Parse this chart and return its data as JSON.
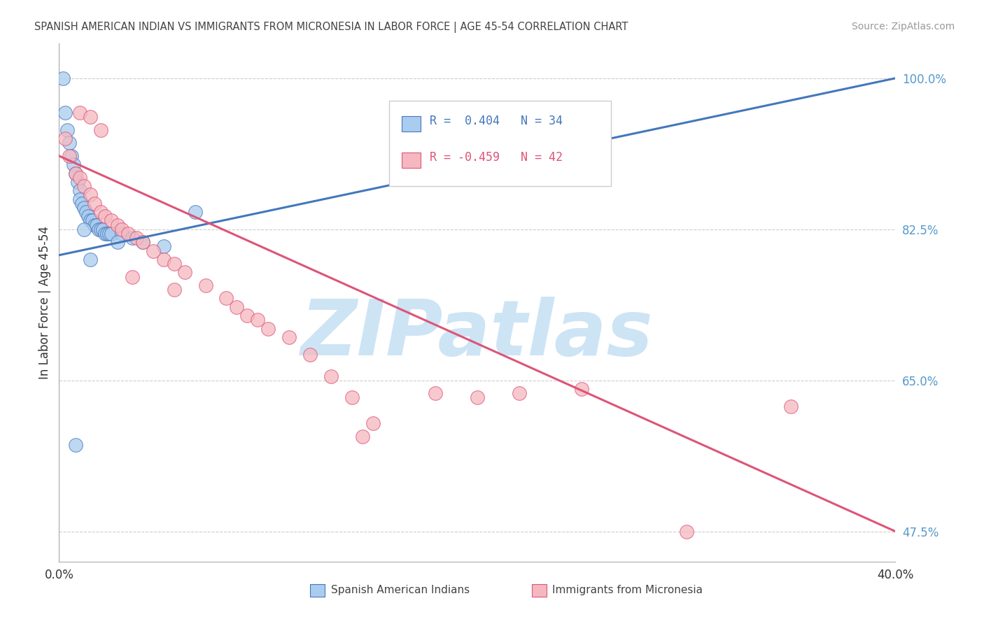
{
  "title": "SPANISH AMERICAN INDIAN VS IMMIGRANTS FROM MICRONESIA IN LABOR FORCE | AGE 45-54 CORRELATION CHART",
  "source": "Source: ZipAtlas.com",
  "ylabel": "In Labor Force | Age 45-54",
  "xlim": [
    0.0,
    40.0
  ],
  "ylim": [
    44.0,
    104.0
  ],
  "yticks": [
    47.5,
    65.0,
    82.5,
    100.0
  ],
  "ytick_labels": [
    "47.5%",
    "65.0%",
    "82.5%",
    "100.0%"
  ],
  "background_color": "#ffffff",
  "grid_color": "#cccccc",
  "watermark": "ZIPatlas",
  "watermark_color": "#cde4f5",
  "legend_r1": "R =  0.404",
  "legend_n1": "N = 34",
  "legend_r2": "R = -0.459",
  "legend_n2": "N = 42",
  "series1_color": "#aaccee",
  "series2_color": "#f5b8c0",
  "line1_color": "#4477bb",
  "line2_color": "#dd5577",
  "series1_label": "Spanish American Indians",
  "series2_label": "Immigrants from Micronesia",
  "blue_x": [
    0.2,
    0.3,
    0.4,
    0.5,
    0.6,
    0.7,
    0.8,
    0.9,
    1.0,
    1.0,
    1.1,
    1.2,
    1.3,
    1.4,
    1.5,
    1.6,
    1.7,
    1.8,
    1.9,
    2.0,
    2.1,
    2.2,
    2.3,
    2.4,
    2.5,
    3.0,
    3.5,
    4.0,
    5.0,
    6.5,
    1.5,
    2.8,
    0.8,
    1.2
  ],
  "blue_y": [
    100.0,
    96.0,
    94.0,
    92.5,
    91.0,
    90.0,
    89.0,
    88.0,
    87.0,
    86.0,
    85.5,
    85.0,
    84.5,
    84.0,
    83.5,
    83.5,
    83.0,
    83.0,
    82.5,
    82.5,
    82.5,
    82.0,
    82.0,
    82.0,
    82.0,
    82.0,
    81.5,
    81.0,
    80.5,
    84.5,
    79.0,
    81.0,
    57.5,
    82.5
  ],
  "pink_x": [
    0.3,
    0.5,
    0.8,
    1.0,
    1.2,
    1.5,
    1.7,
    2.0,
    2.2,
    2.5,
    2.8,
    3.0,
    3.3,
    3.7,
    4.0,
    4.5,
    5.0,
    5.5,
    6.0,
    7.0,
    8.0,
    8.5,
    9.0,
    10.0,
    11.0,
    12.0,
    13.0,
    14.0,
    15.0,
    18.0,
    20.0,
    22.0,
    25.0,
    30.0,
    35.0,
    3.5,
    5.5,
    9.5,
    14.5,
    1.0,
    1.5,
    2.0
  ],
  "pink_y": [
    93.0,
    91.0,
    89.0,
    88.5,
    87.5,
    86.5,
    85.5,
    84.5,
    84.0,
    83.5,
    83.0,
    82.5,
    82.0,
    81.5,
    81.0,
    80.0,
    79.0,
    78.5,
    77.5,
    76.0,
    74.5,
    73.5,
    72.5,
    71.0,
    70.0,
    68.0,
    65.5,
    63.0,
    60.0,
    63.5,
    63.0,
    63.5,
    64.0,
    47.5,
    62.0,
    77.0,
    75.5,
    72.0,
    58.5,
    96.0,
    95.5,
    94.0
  ],
  "blue_line_x0": 0.0,
  "blue_line_x1": 40.0,
  "blue_line_y0": 79.5,
  "blue_line_y1": 100.0,
  "pink_line_x0": 0.0,
  "pink_line_x1": 40.0,
  "pink_line_y0": 91.0,
  "pink_line_y1": 47.5
}
